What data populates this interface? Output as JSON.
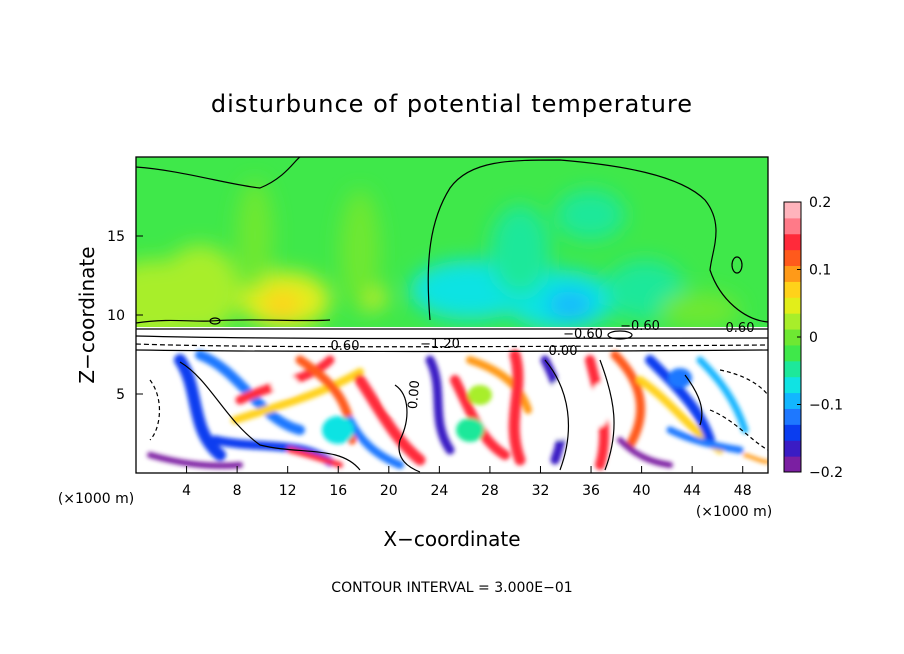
{
  "chart_data": {
    "type": "heatmap",
    "title": "disturbunce of potential temperature",
    "xlabel": "X−coordinate",
    "ylabel": "Z−coordinate",
    "x_unit": "(×1000 m)",
    "y_unit": "(×1000 m)",
    "xlim": [
      0,
      50
    ],
    "ylim": [
      0,
      20
    ],
    "x_ticks": [
      4,
      8,
      12,
      16,
      20,
      24,
      28,
      32,
      36,
      40,
      44,
      48
    ],
    "y_ticks": [
      5,
      10,
      15
    ],
    "colorbar": {
      "range": [
        -0.2,
        0.2
      ],
      "tick_values": [
        0.2,
        0.1,
        0,
        -0.1,
        -0.2
      ],
      "tick_labels": [
        "0.2",
        "0.1",
        "0",
        "−0.1",
        "−0.2"
      ],
      "colors": [
        "#7b1fa2",
        "#3a1cc4",
        "#0a3df0",
        "#1e78ff",
        "#12b6ff",
        "#10e3e3",
        "#1de89a",
        "#3fe84a",
        "#6ee832",
        "#a8ee2a",
        "#e2ee1a",
        "#ffd21a",
        "#ff9a18",
        "#ff5a1c",
        "#ff2a3a",
        "#ff7a88",
        "#ffb4bc"
      ]
    },
    "contour_labels": [
      "−0.60",
      "−1.20",
      "−0.60",
      "0.60",
      "0.60",
      "0.00",
      "0.00"
    ],
    "footer": "CONTOUR INTERVAL = 3.000E−01",
    "grid": false,
    "legend": "colorbar-right"
  }
}
